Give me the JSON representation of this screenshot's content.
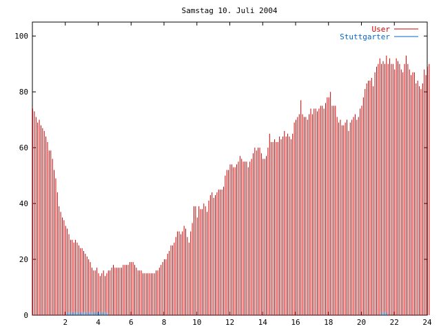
{
  "chart_data": {
    "type": "bar",
    "title": "Samstag 10. Juli 2004",
    "xlabel": "",
    "ylabel": "",
    "xlim": [
      0,
      24
    ],
    "ylim": [
      0,
      105
    ],
    "x_ticks": [
      2,
      4,
      6,
      8,
      10,
      12,
      14,
      16,
      18,
      20,
      22,
      24
    ],
    "y_ticks": [
      0,
      20,
      40,
      60,
      80,
      100
    ],
    "grid": false,
    "legend_position": "top-right",
    "bin_width_hours": 0.1,
    "series": [
      {
        "name": "User",
        "color": "#cc0000",
        "values": [
          74,
          73,
          71,
          69,
          70,
          68,
          67,
          66,
          64,
          62,
          59,
          59,
          56,
          52,
          49,
          44,
          39,
          37,
          35,
          34,
          32,
          31,
          29,
          27,
          27,
          26,
          27,
          26,
          25,
          24,
          24,
          23,
          22,
          21,
          20,
          19,
          17,
          16,
          16,
          17,
          15,
          14,
          15,
          16,
          14,
          15,
          16,
          16,
          17,
          18,
          17,
          17,
          17,
          17,
          17,
          18,
          18,
          18,
          18,
          19,
          19,
          19,
          18,
          17,
          16,
          16,
          16,
          15,
          15,
          15,
          15,
          15,
          15,
          15,
          15,
          16,
          16,
          17,
          18,
          19,
          20,
          20,
          22,
          23,
          25,
          25,
          26,
          28,
          30,
          30,
          29,
          30,
          32,
          31,
          28,
          26,
          30,
          33,
          39,
          39,
          35,
          39,
          38,
          38,
          40,
          39,
          37,
          41,
          43,
          44,
          42,
          43,
          44,
          45,
          45,
          45,
          46,
          50,
          52,
          52,
          54,
          54,
          53,
          53,
          54,
          55,
          57,
          56,
          55,
          55,
          55,
          53,
          55,
          56,
          58,
          60,
          59,
          60,
          60,
          58,
          56,
          56,
          57,
          60,
          65,
          62,
          62,
          63,
          62,
          62,
          64,
          63,
          64,
          66,
          64,
          65,
          64,
          63,
          65,
          69,
          70,
          71,
          72,
          77,
          72,
          71,
          71,
          70,
          72,
          74,
          72,
          74,
          74,
          73,
          74,
          75,
          75,
          74,
          76,
          78,
          78,
          80,
          75,
          75,
          75,
          71,
          69,
          70,
          68,
          68,
          69,
          70,
          66,
          69,
          70,
          71,
          72,
          70,
          71,
          74,
          75,
          78,
          81,
          83,
          84,
          84,
          85,
          82,
          87,
          89,
          90,
          92,
          90,
          91,
          90,
          93,
          90,
          92,
          90,
          90,
          88,
          92,
          91,
          90,
          88,
          87,
          90,
          93,
          90,
          88,
          86,
          87,
          87,
          83,
          84,
          82,
          81,
          83,
          88,
          86,
          89,
          90
        ]
      },
      {
        "name": "Stuttgarter",
        "color": "#0066cc",
        "values": [
          0,
          0,
          0,
          0,
          0,
          0,
          0,
          0,
          0,
          0,
          0,
          0,
          0,
          0,
          0,
          0,
          0,
          0,
          0,
          0,
          0,
          1,
          1,
          1,
          1,
          1,
          1,
          1,
          1,
          1,
          1,
          1,
          1,
          1,
          1,
          1,
          1,
          1,
          1,
          1,
          1,
          1,
          1,
          1,
          1,
          1,
          0,
          0,
          0,
          0,
          0,
          0,
          0,
          0,
          0,
          0,
          0,
          0,
          0,
          0,
          0,
          0,
          0,
          0,
          0,
          0,
          0,
          0,
          0,
          0,
          0,
          0,
          0,
          0,
          0,
          0,
          0,
          0,
          0,
          0,
          0,
          0,
          0,
          0,
          0,
          0,
          0,
          0,
          0,
          0,
          0,
          0,
          0,
          0,
          0,
          0,
          0,
          0,
          0,
          0,
          0,
          0,
          0,
          0,
          0,
          0,
          0,
          0,
          0,
          0,
          0,
          0,
          0,
          0,
          0,
          0,
          0,
          0,
          0,
          0,
          0,
          0,
          0,
          0,
          0,
          0,
          0,
          0,
          0,
          0,
          0,
          0,
          0,
          0,
          0,
          0,
          0,
          0,
          0,
          0,
          0,
          0,
          0,
          0,
          0,
          0,
          0,
          0,
          0,
          0,
          0,
          0,
          0,
          0,
          0,
          0,
          0,
          0,
          0,
          0,
          0,
          0,
          0,
          0,
          0,
          0,
          0,
          0,
          0,
          0,
          0,
          0,
          0,
          0,
          0,
          0,
          0,
          0,
          0,
          0,
          0,
          0,
          0,
          0,
          0,
          0,
          0,
          0,
          0,
          0,
          0,
          0,
          0,
          0,
          0,
          0,
          0,
          0,
          0,
          0,
          0,
          0,
          0,
          0,
          0,
          0,
          0,
          0,
          0,
          0,
          0,
          0,
          1,
          1,
          1,
          1,
          0,
          0,
          0,
          0,
          0,
          0,
          0,
          0,
          0,
          0,
          0,
          0,
          0,
          0,
          0,
          0,
          0,
          0,
          0,
          0,
          0,
          0,
          0,
          0,
          0,
          0
        ]
      }
    ]
  }
}
